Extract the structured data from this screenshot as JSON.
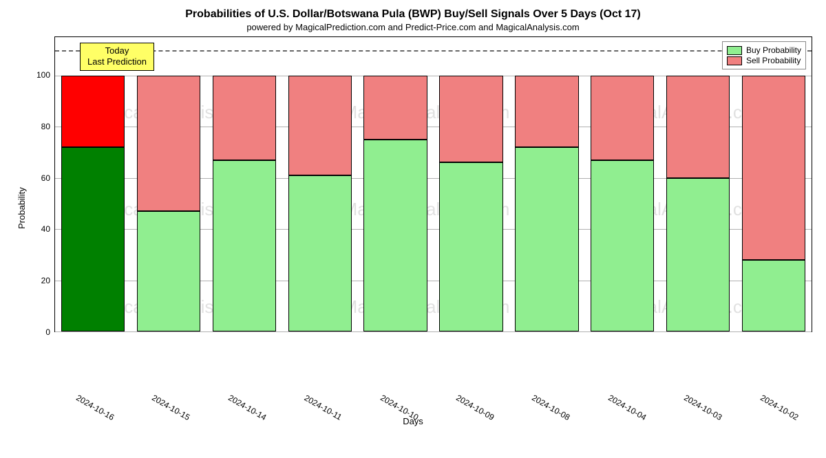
{
  "chart": {
    "type": "stacked-bar",
    "title": "Probabilities of U.S. Dollar/Botswana Pula (BWP) Buy/Sell Signals Over 5 Days (Oct 17)",
    "subtitle": "powered by MagicalPrediction.com and Predict-Price.com and MagicalAnalysis.com",
    "xlabel": "Days",
    "ylabel": "Probability",
    "ylim_min": 0,
    "ylim_max": 115,
    "y_ticks": [
      0,
      20,
      40,
      60,
      80,
      100
    ],
    "dashline_value": 110,
    "background_color": "#ffffff",
    "border_color": "#000000",
    "grid_color": "#b0b0b0",
    "title_fontsize": 16,
    "subtitle_fontsize": 13,
    "axis_label_fontsize": 13,
    "tick_fontsize": 12,
    "bar_width_ratio": 0.84,
    "annotation": {
      "line1": "Today",
      "line2": "Last Prediction",
      "bg_color": "#ffff66",
      "border_color": "#000000"
    },
    "legend": {
      "items": [
        {
          "label": "Buy Probability",
          "color": "#90ee90"
        },
        {
          "label": "Sell Probability",
          "color": "#f08080"
        }
      ],
      "border_color": "#888888",
      "bg_color": "#ffffff"
    },
    "watermark_text": "MagicalAnalysis.com",
    "watermark_color": "rgba(120,120,120,0.22)",
    "categories": [
      "2024-10-16",
      "2024-10-15",
      "2024-10-14",
      "2024-10-11",
      "2024-10-10",
      "2024-10-09",
      "2024-10-08",
      "2024-10-04",
      "2024-10-03",
      "2024-10-02"
    ],
    "series": {
      "buy": [
        72,
        47,
        67,
        61,
        75,
        66,
        72,
        67,
        60,
        28
      ],
      "sell": [
        28,
        53,
        33,
        39,
        25,
        34,
        28,
        33,
        40,
        72
      ]
    },
    "bar_colors": {
      "buy_highlight": "#008000",
      "sell_highlight": "#ff0000",
      "buy": "#90ee90",
      "sell": "#f08080",
      "border": "#000000"
    },
    "highlight_index": 0,
    "watermark_positions": [
      {
        "top_pct": 22,
        "left_pct": 4
      },
      {
        "top_pct": 22,
        "left_pct": 38
      },
      {
        "top_pct": 22,
        "left_pct": 72
      },
      {
        "top_pct": 55,
        "left_pct": 4
      },
      {
        "top_pct": 55,
        "left_pct": 38
      },
      {
        "top_pct": 55,
        "left_pct": 72
      },
      {
        "top_pct": 88,
        "left_pct": 4
      },
      {
        "top_pct": 88,
        "left_pct": 38
      },
      {
        "top_pct": 88,
        "left_pct": 72
      }
    ]
  }
}
